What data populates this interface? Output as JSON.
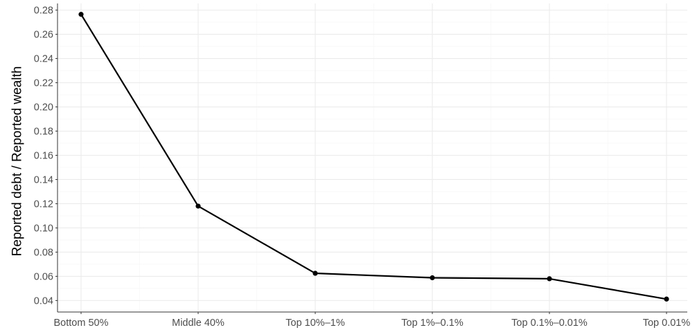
{
  "chart_data": {
    "type": "line",
    "title": "",
    "xlabel": "",
    "ylabel": "Reported debt / Reported wealth",
    "categories": [
      "Bottom 50%",
      "Middle 40%",
      "Top 10%–1%",
      "Top 1%–0.1%",
      "Top 0.1%–0.01%",
      "Top 0.01%"
    ],
    "series": [
      {
        "values": [
          0.2765,
          0.118,
          0.0625,
          0.0588,
          0.058,
          0.0412
        ]
      }
    ],
    "yticks": [
      "0.04",
      "0.06",
      "0.08",
      "0.10",
      "0.12",
      "0.14",
      "0.16",
      "0.18",
      "0.20",
      "0.22",
      "0.24",
      "0.26",
      "0.28"
    ],
    "ylim": [
      0.0305,
      0.2855
    ],
    "grid": true,
    "legend": "none",
    "colors": {
      "line": "#000000",
      "point": "#000000",
      "grid_major": "#ebebeb",
      "grid_minor": "#f5f5f5",
      "axis": "#333333"
    }
  }
}
